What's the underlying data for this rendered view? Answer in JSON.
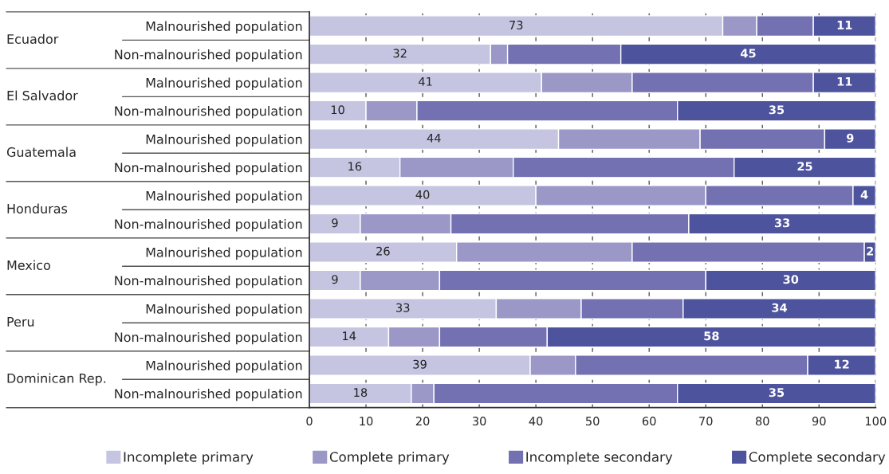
{
  "chart_data": {
    "type": "bar",
    "orientation": "horizontal",
    "stacked": true,
    "categories": [
      "Malnourished population",
      "Non-malnourished population",
      "Malnourished population",
      "Non-malnourished population",
      "Malnourished population",
      "Non-malnourished population",
      "Malnourished population",
      "Non-malnourished population",
      "Malnourished population",
      "Non-malnourished population",
      "Malnourished population",
      "Non-malnourished population",
      "Malnourished population",
      "Non-malnourished population"
    ],
    "annotations": [
      "Ecuador",
      "El Salvador",
      "Guatemala",
      "Honduras",
      "Mexico",
      "Peru",
      "Dominican Rep."
    ],
    "series": [
      {
        "name": "Incomplete primary",
        "color": "#c5c5e1",
        "values": [
          73,
          32,
          41,
          10,
          44,
          16,
          40,
          9,
          26,
          9,
          33,
          14,
          39,
          18
        ],
        "value_labels": [
          "73",
          "32",
          "41",
          "10",
          "44",
          "16",
          "40",
          "9",
          "26",
          "9",
          "33",
          "14",
          "39",
          "18"
        ]
      },
      {
        "name": "Complete primary",
        "color": "#9b98c8",
        "values": [
          6,
          3,
          16,
          9,
          25,
          20,
          30,
          16,
          31,
          14,
          15,
          9,
          8,
          4
        ]
      },
      {
        "name": "Incomplete secondary",
        "color": "#7371b1",
        "values": [
          10,
          20,
          32,
          46,
          22,
          39,
          26,
          42,
          41,
          47,
          18,
          19,
          41,
          43
        ]
      },
      {
        "name": "Complete secondary",
        "color": "#4e539d",
        "values": [
          11,
          45,
          11,
          35,
          9,
          25,
          4,
          33,
          2,
          30,
          34,
          58,
          12,
          35
        ],
        "value_labels": [
          "11",
          "45",
          "11",
          "35",
          "9",
          "25",
          "4",
          "33",
          "2",
          "30",
          "34",
          "58",
          "12",
          "35"
        ]
      }
    ],
    "xlim": [
      0,
      100
    ],
    "xticks": [
      0,
      10,
      20,
      30,
      40,
      50,
      60,
      70,
      80,
      90,
      100
    ],
    "grid": "x",
    "legend": "bottom"
  }
}
